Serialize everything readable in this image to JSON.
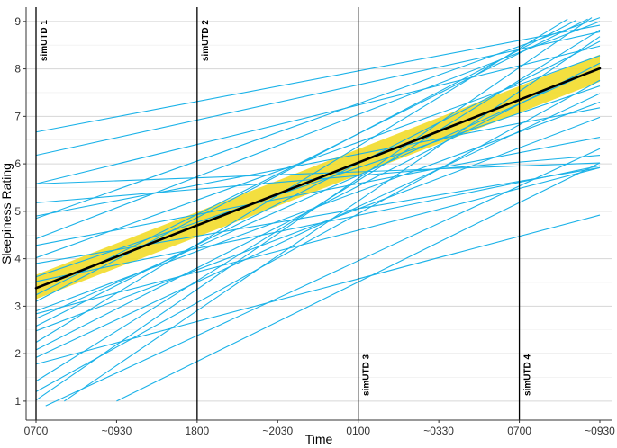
{
  "chart_data": {
    "type": "line",
    "title": "",
    "xlabel": "Time",
    "ylabel": "Sleepiness Rating",
    "x_ticks": [
      "0700",
      "~0930",
      "1800",
      "~2030",
      "0100",
      "~0330",
      "0700",
      "~0930"
    ],
    "xlim": [
      0,
      7
    ],
    "ylim": [
      0.6,
      9.3
    ],
    "y_ticks": [
      1,
      2,
      3,
      4,
      5,
      6,
      7,
      8,
      9
    ],
    "grid": true,
    "vertical_markers": [
      {
        "x": 0,
        "label": "simUTD 1",
        "label_position": "top"
      },
      {
        "x": 2,
        "label": "simUTD 2",
        "label_position": "top"
      },
      {
        "x": 4,
        "label": "simUTD 3",
        "label_position": "bottom"
      },
      {
        "x": 6,
        "label": "simUTD 4",
        "label_position": "bottom"
      }
    ],
    "mean_line": {
      "x": [
        0,
        7
      ],
      "y": [
        3.38,
        8.01
      ],
      "ci_lower": [
        3.15,
        7.73
      ],
      "ci_upper": [
        3.66,
        8.3
      ],
      "color": "#000000",
      "band_color": "#f2dc2a"
    },
    "individual_color": "#1ab2e8",
    "individual_lines": [
      {
        "x0": 0,
        "y0": 6.67,
        "x1": 7,
        "y1": 8.92
      },
      {
        "x0": 0,
        "y0": 6.18,
        "x1": 7,
        "y1": 8.78
      },
      {
        "x0": 0,
        "y0": 5.58,
        "x1": 7,
        "y1": 6.02
      },
      {
        "x0": 0,
        "y0": 5.58,
        "x1": 7,
        "y1": 8.48
      },
      {
        "x0": 0,
        "y0": 5.18,
        "x1": 7,
        "y1": 6.18
      },
      {
        "x0": 0,
        "y0": 4.9,
        "x1": 7,
        "y1": 7.18
      },
      {
        "x0": 0,
        "y0": 4.85,
        "x1": 7,
        "y1": 9.08
      },
      {
        "x0": 0,
        "y0": 4.42,
        "x1": 7,
        "y1": 9.0
      },
      {
        "x0": 0,
        "y0": 4.28,
        "x1": 7,
        "y1": 6.56
      },
      {
        "x0": 0,
        "y0": 4.02,
        "x1": 7,
        "y1": 8.28
      },
      {
        "x0": 0,
        "y0": 3.62,
        "x1": 7,
        "y1": 7.64
      },
      {
        "x0": 0,
        "y0": 3.52,
        "x1": 7,
        "y1": 5.96
      },
      {
        "x0": 0,
        "y0": 3.24,
        "x1": 6.85,
        "y1": 9.05
      },
      {
        "x0": 0,
        "y0": 2.84,
        "x1": 7,
        "y1": 5.92
      },
      {
        "x0": 0,
        "y0": 2.74,
        "x1": 7,
        "y1": 8.02
      },
      {
        "x0": 0,
        "y0": 2.58,
        "x1": 7,
        "y1": 8.58
      },
      {
        "x0": 0,
        "y0": 2.48,
        "x1": 7,
        "y1": 6.98
      },
      {
        "x0": 0,
        "y0": 2.24,
        "x1": 6.6,
        "y1": 9.05
      },
      {
        "x0": 0,
        "y0": 2.08,
        "x1": 7,
        "y1": 8.12
      },
      {
        "x0": 0,
        "y0": 1.92,
        "x1": 7,
        "y1": 7.48
      },
      {
        "x0": 0,
        "y0": 1.78,
        "x1": 7,
        "y1": 4.92
      },
      {
        "x0": 0,
        "y0": 1.42,
        "x1": 7,
        "y1": 8.82
      },
      {
        "x0": 0,
        "y0": 1.2,
        "x1": 7,
        "y1": 7.76
      },
      {
        "x0": 0,
        "y0": 1.02,
        "x1": 6.9,
        "y1": 9.08
      },
      {
        "x0": 0.12,
        "y0": 0.9,
        "x1": 7,
        "y1": 6.32
      },
      {
        "x0": 0.35,
        "y0": 1.0,
        "x1": 7,
        "y1": 8.68
      },
      {
        "x0": 1.0,
        "y0": 1.0,
        "x1": 7,
        "y1": 6.02
      },
      {
        "x0": 0,
        "y0": 3.9,
        "x1": 7,
        "y1": 5.92
      },
      {
        "x0": 0,
        "y0": 2.9,
        "x1": 7,
        "y1": 7.3
      },
      {
        "x0": 0,
        "y0": 3.1,
        "x1": 6.7,
        "y1": 9.02
      }
    ]
  }
}
